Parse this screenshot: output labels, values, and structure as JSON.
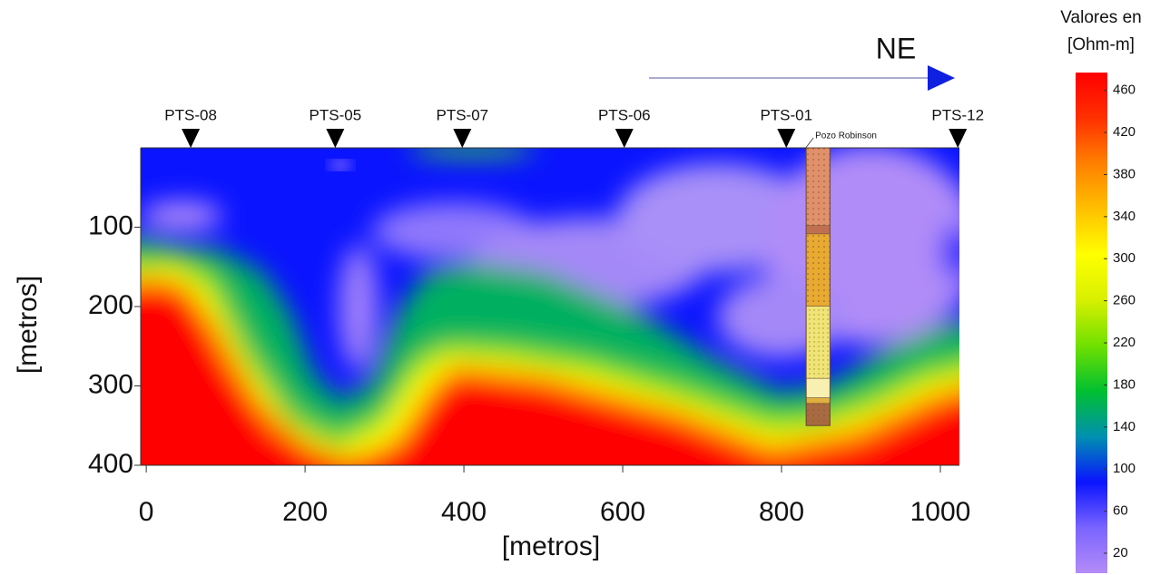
{
  "chart_data": {
    "type": "section",
    "xlabel": "[metros]",
    "ylabel": "[metros]",
    "xlim": [
      -7,
      1024
    ],
    "ylim": [
      0,
      400
    ],
    "xticks": [
      0,
      200,
      400,
      600,
      800,
      1000
    ],
    "yticks": [
      100,
      200,
      300,
      400
    ],
    "direction": "NE",
    "stations": [
      {
        "name": "PTS-08",
        "x": 56
      },
      {
        "name": "PTS-05",
        "x": 238
      },
      {
        "name": "PTS-07",
        "x": 398
      },
      {
        "name": "PTS-06",
        "x": 602
      },
      {
        "name": "PTS-01",
        "x": 806
      },
      {
        "name": "PTS-12",
        "x": 1022
      }
    ],
    "well": {
      "name": "Pozo Robinson",
      "xlim": [
        831,
        861
      ],
      "depth": 350
    },
    "colorbar": {
      "title": [
        "Valores en",
        "[Ohm-m]"
      ],
      "lim": [
        1,
        477
      ],
      "ticks": [
        20,
        60,
        100,
        140,
        180,
        220,
        260,
        300,
        340,
        380,
        420,
        460
      ],
      "colors": [
        "#b48cf8",
        "#7a64ff",
        "#0a14ff",
        "#0090b0",
        "#00c030",
        "#70e000",
        "#d8f000",
        "#ffff00",
        "#ffc000",
        "#ff8000",
        "#ff3000",
        "#ff0000"
      ]
    }
  }
}
